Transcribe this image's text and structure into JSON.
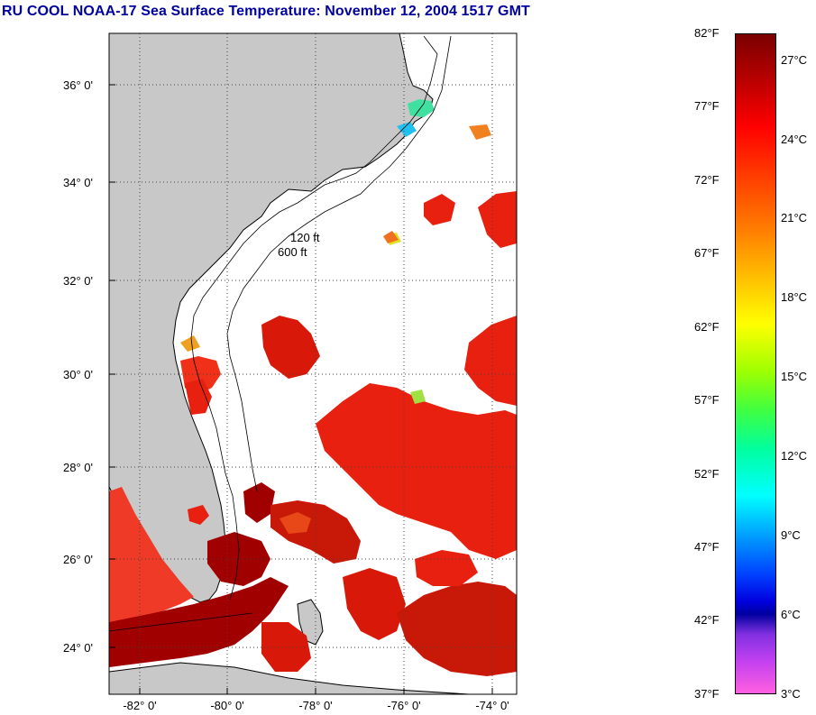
{
  "title": "RU COOL  NOAA-17  Sea Surface Temperature:  November 12, 2004 1517 GMT",
  "map": {
    "lat_labels": [
      "36° 0'",
      "34° 0'",
      "32° 0'",
      "30° 0'",
      "28° 0'",
      "26° 0'",
      "24° 0'"
    ],
    "lon_labels": [
      "-82° 0'",
      "-80° 0'",
      "-78° 0'",
      "-76° 0'",
      "-74° 0'"
    ],
    "contour_labels": [
      "120 ft",
      "600 ft"
    ],
    "colors": {
      "land": "#c8c8c8",
      "ocean_no_data": "#ffffff",
      "warm_red": "#e82010",
      "dark_red": "#a00000"
    }
  },
  "colorbar": {
    "fahrenheit": [
      "82°F",
      "77°F",
      "72°F",
      "67°F",
      "62°F",
      "57°F",
      "52°F",
      "47°F",
      "42°F",
      "37°F"
    ],
    "celsius": [
      "27°C",
      "24°C",
      "21°C",
      "18°C",
      "15°C",
      "12°C",
      "9°C",
      "6°C",
      "3°C"
    ]
  }
}
